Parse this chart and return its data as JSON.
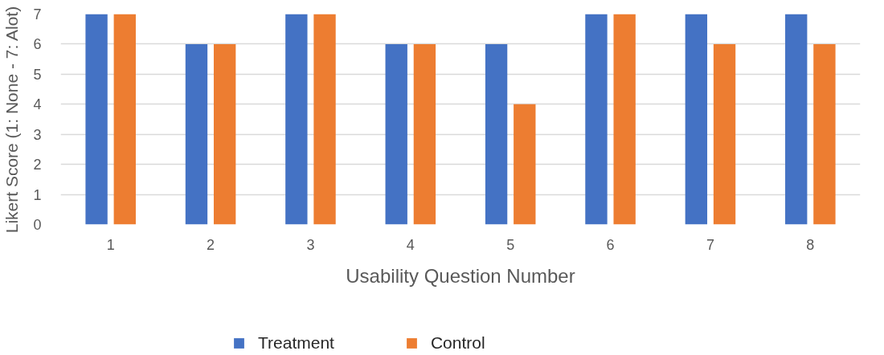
{
  "chart_data": {
    "type": "bar",
    "xlabel": "Usability Question Number",
    "ylabel": "Likert Score (1: None - 7: Alot)",
    "categories": [
      "1",
      "2",
      "3",
      "4",
      "5",
      "6",
      "7",
      "8"
    ],
    "series": [
      {
        "name": "Treatment",
        "color": "#4472c4",
        "values": [
          7,
          6,
          7,
          6,
          6,
          7,
          7,
          7
        ]
      },
      {
        "name": "Control",
        "color": "#ed7d31",
        "values": [
          7,
          6,
          7,
          6,
          4,
          7,
          6,
          6
        ]
      }
    ],
    "ylim": [
      0,
      7
    ],
    "yticks": [
      0,
      1,
      2,
      3,
      4,
      5,
      6,
      7
    ],
    "grid": "y",
    "legend": "bottom"
  }
}
